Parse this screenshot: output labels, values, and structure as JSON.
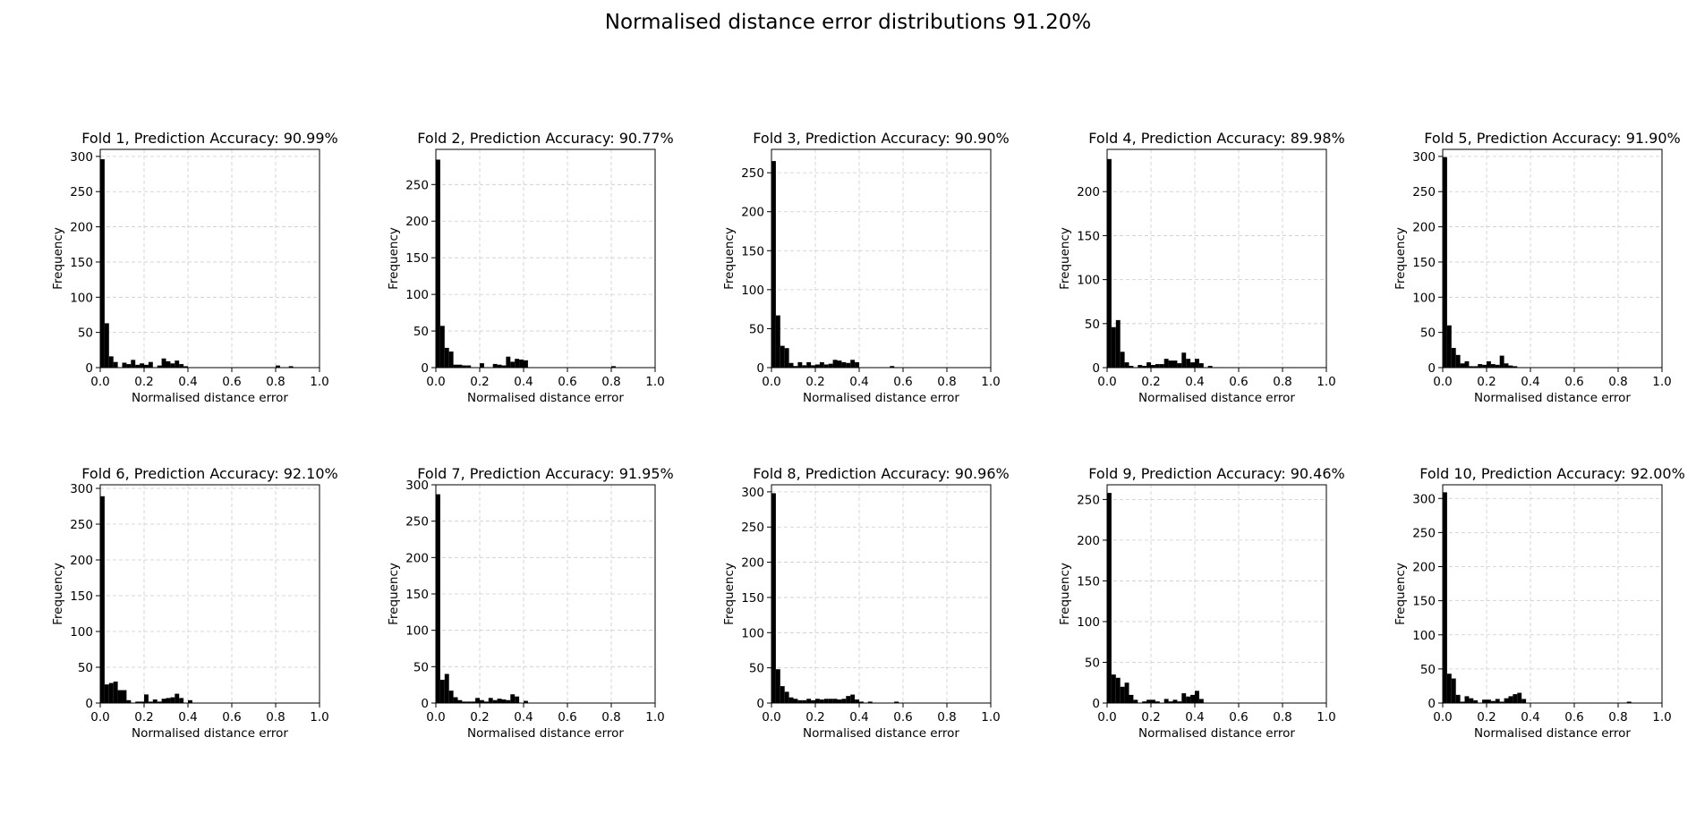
{
  "title": "Normalised distance error distributions 91.20%",
  "chart_data": [
    {
      "type": "bar",
      "title": "Fold 1, Prediction Accuracy: 90.99%",
      "xlabel": "Normalised distance error",
      "ylabel": "Frequency",
      "xlim": [
        0,
        1
      ],
      "ylim": [
        0,
        310
      ],
      "yticks": [
        0,
        50,
        100,
        150,
        200,
        250,
        300
      ],
      "xticks": [
        0.0,
        0.2,
        0.4,
        0.6,
        0.8,
        1.0
      ],
      "grid": true,
      "bin_width": 0.02,
      "values": [
        296,
        63,
        16,
        8,
        0,
        7,
        5,
        11,
        4,
        6,
        4,
        8,
        0,
        3,
        13,
        9,
        6,
        10,
        5,
        2,
        0,
        0,
        0,
        0,
        0,
        0,
        0,
        0,
        0,
        0,
        0,
        0,
        0,
        0,
        0,
        0,
        0,
        0,
        0,
        0,
        3,
        0,
        0,
        2,
        0,
        0,
        0,
        0,
        0,
        0
      ]
    },
    {
      "type": "bar",
      "title": "Fold 2, Prediction Accuracy: 90.77%",
      "xlabel": "Normalised distance error",
      "ylabel": "Frequency",
      "xlim": [
        0,
        1
      ],
      "ylim": [
        0,
        298
      ],
      "yticks": [
        0,
        50,
        100,
        150,
        200,
        250
      ],
      "xticks": [
        0.0,
        0.2,
        0.4,
        0.6,
        0.8,
        1.0
      ],
      "grid": true,
      "bin_width": 0.02,
      "values": [
        284,
        57,
        27,
        22,
        4,
        4,
        3,
        3,
        0,
        0,
        6,
        0,
        0,
        5,
        4,
        3,
        15,
        8,
        12,
        11,
        10,
        0,
        0,
        0,
        0,
        0,
        0,
        0,
        0,
        0,
        0,
        0,
        0,
        0,
        0,
        0,
        0,
        0,
        0,
        0,
        2,
        0,
        0,
        0,
        0,
        0,
        0,
        0,
        0,
        0
      ]
    },
    {
      "type": "bar",
      "title": "Fold 3, Prediction Accuracy: 90.90%",
      "xlabel": "Normalised distance error",
      "ylabel": "Frequency",
      "xlim": [
        0,
        1
      ],
      "ylim": [
        0,
        280
      ],
      "yticks": [
        0,
        50,
        100,
        150,
        200,
        250
      ],
      "xticks": [
        0.0,
        0.2,
        0.4,
        0.6,
        0.8,
        1.0
      ],
      "grid": true,
      "bin_width": 0.02,
      "values": [
        265,
        67,
        28,
        25,
        6,
        2,
        7,
        3,
        7,
        3,
        4,
        7,
        4,
        5,
        10,
        9,
        7,
        6,
        10,
        7,
        0,
        0,
        0,
        0,
        0,
        0,
        0,
        2,
        0,
        0,
        0,
        0,
        0,
        0,
        0,
        0,
        0,
        0,
        0,
        0,
        0,
        0,
        0,
        0,
        0,
        0,
        0,
        0,
        0,
        0
      ]
    },
    {
      "type": "bar",
      "title": "Fold 4, Prediction Accuracy: 89.98%",
      "xlabel": "Normalised distance error",
      "ylabel": "Frequency",
      "xlim": [
        0,
        1
      ],
      "ylim": [
        0,
        248
      ],
      "yticks": [
        0,
        50,
        100,
        150,
        200
      ],
      "xticks": [
        0.0,
        0.2,
        0.4,
        0.6,
        0.8,
        1.0
      ],
      "grid": true,
      "bin_width": 0.02,
      "values": [
        237,
        46,
        54,
        18,
        6,
        2,
        0,
        3,
        2,
        6,
        3,
        4,
        4,
        10,
        8,
        8,
        5,
        17,
        10,
        6,
        10,
        5,
        0,
        2,
        0,
        0,
        0,
        0,
        0,
        0,
        0,
        0,
        0,
        0,
        0,
        0,
        0,
        0,
        0,
        0,
        0,
        0,
        0,
        0,
        0,
        0,
        0,
        0,
        0,
        0
      ]
    },
    {
      "type": "bar",
      "title": "Fold 5, Prediction Accuracy: 91.90%",
      "xlabel": "Normalised distance error",
      "ylabel": "Frequency",
      "xlim": [
        0,
        1
      ],
      "ylim": [
        0,
        310
      ],
      "yticks": [
        0,
        50,
        100,
        150,
        200,
        250,
        300
      ],
      "xticks": [
        0.0,
        0.2,
        0.4,
        0.6,
        0.8,
        1.0
      ],
      "grid": true,
      "bin_width": 0.02,
      "values": [
        299,
        60,
        28,
        18,
        6,
        9,
        2,
        2,
        5,
        4,
        9,
        5,
        4,
        17,
        6,
        3,
        2,
        0,
        0,
        0,
        0,
        0,
        0,
        0,
        0,
        0,
        0,
        0,
        0,
        0,
        0,
        0,
        0,
        0,
        0,
        0,
        0,
        0,
        0,
        0,
        0,
        0,
        0,
        0,
        0,
        0,
        0,
        0,
        0,
        0
      ]
    },
    {
      "type": "bar",
      "title": "Fold 6, Prediction Accuracy: 92.10%",
      "xlabel": "Normalised distance error",
      "ylabel": "Frequency",
      "xlim": [
        0,
        1
      ],
      "ylim": [
        0,
        305
      ],
      "yticks": [
        0,
        50,
        100,
        150,
        200,
        250,
        300
      ],
      "xticks": [
        0.0,
        0.2,
        0.4,
        0.6,
        0.8,
        1.0
      ],
      "grid": true,
      "bin_width": 0.02,
      "values": [
        289,
        26,
        28,
        30,
        18,
        18,
        4,
        0,
        2,
        2,
        12,
        2,
        5,
        2,
        6,
        7,
        8,
        13,
        7,
        0,
        4,
        0,
        0,
        0,
        0,
        0,
        0,
        0,
        0,
        0,
        0,
        0,
        0,
        0,
        0,
        0,
        0,
        0,
        0,
        0,
        0,
        0,
        0,
        0,
        0,
        0,
        0,
        0,
        0,
        0
      ]
    },
    {
      "type": "bar",
      "title": "Fold 7, Prediction Accuracy: 91.95%",
      "xlabel": "Normalised distance error",
      "ylabel": "Frequency",
      "xlim": [
        0,
        1
      ],
      "ylim": [
        0,
        300
      ],
      "yticks": [
        0,
        50,
        100,
        150,
        200,
        250,
        300
      ],
      "xticks": [
        0.0,
        0.2,
        0.4,
        0.6,
        0.8,
        1.0
      ],
      "grid": true,
      "bin_width": 0.02,
      "values": [
        287,
        32,
        40,
        17,
        8,
        4,
        2,
        2,
        2,
        7,
        4,
        2,
        7,
        4,
        6,
        5,
        4,
        12,
        9,
        0,
        3,
        0,
        0,
        0,
        0,
        0,
        0,
        0,
        0,
        0,
        0,
        0,
        0,
        0,
        0,
        0,
        0,
        0,
        0,
        0,
        0,
        0,
        0,
        0,
        0,
        0,
        0,
        0,
        0,
        0
      ]
    },
    {
      "type": "bar",
      "title": "Fold 8, Prediction Accuracy: 90.96%",
      "xlabel": "Normalised distance error",
      "ylabel": "Frequency",
      "xlim": [
        0,
        1
      ],
      "ylim": [
        0,
        310
      ],
      "yticks": [
        0,
        50,
        100,
        150,
        200,
        250,
        300
      ],
      "xticks": [
        0.0,
        0.2,
        0.4,
        0.6,
        0.8,
        1.0
      ],
      "grid": true,
      "bin_width": 0.02,
      "values": [
        298,
        48,
        24,
        16,
        8,
        6,
        4,
        4,
        6,
        4,
        6,
        5,
        6,
        6,
        6,
        5,
        6,
        10,
        12,
        5,
        2,
        0,
        2,
        0,
        0,
        0,
        0,
        0,
        2,
        0,
        0,
        0,
        0,
        0,
        0,
        0,
        0,
        0,
        0,
        0,
        0,
        0,
        0,
        0,
        0,
        0,
        0,
        0,
        0,
        0
      ]
    },
    {
      "type": "bar",
      "title": "Fold 9, Prediction Accuracy: 90.46%",
      "xlabel": "Normalised distance error",
      "ylabel": "Frequency",
      "xlim": [
        0,
        1
      ],
      "ylim": [
        0,
        268
      ],
      "yticks": [
        0,
        50,
        100,
        150,
        200,
        250
      ],
      "xticks": [
        0.0,
        0.2,
        0.4,
        0.6,
        0.8,
        1.0
      ],
      "grid": true,
      "bin_width": 0.02,
      "values": [
        258,
        35,
        31,
        20,
        25,
        10,
        4,
        0,
        2,
        4,
        4,
        2,
        0,
        5,
        2,
        4,
        2,
        12,
        8,
        10,
        15,
        5,
        0,
        0,
        0,
        0,
        0,
        0,
        0,
        0,
        0,
        0,
        0,
        0,
        0,
        0,
        0,
        0,
        0,
        0,
        0,
        0,
        0,
        0,
        0,
        0,
        0,
        0,
        0,
        0
      ]
    },
    {
      "type": "bar",
      "title": "Fold 10, Prediction Accuracy: 92.00%",
      "xlabel": "Normalised distance error",
      "ylabel": "Frequency",
      "xlim": [
        0,
        1
      ],
      "ylim": [
        0,
        320
      ],
      "yticks": [
        0,
        50,
        100,
        150,
        200,
        250,
        300
      ],
      "xticks": [
        0.0,
        0.2,
        0.4,
        0.6,
        0.8,
        1.0
      ],
      "grid": true,
      "bin_width": 0.02,
      "values": [
        309,
        43,
        36,
        12,
        2,
        10,
        7,
        4,
        0,
        5,
        5,
        3,
        6,
        2,
        7,
        10,
        13,
        15,
        6,
        0,
        0,
        0,
        0,
        0,
        0,
        0,
        0,
        0,
        0,
        0,
        0,
        0,
        0,
        0,
        0,
        0,
        0,
        0,
        0,
        0,
        0,
        0,
        2,
        0,
        0,
        0,
        0,
        0,
        0,
        0
      ]
    }
  ]
}
